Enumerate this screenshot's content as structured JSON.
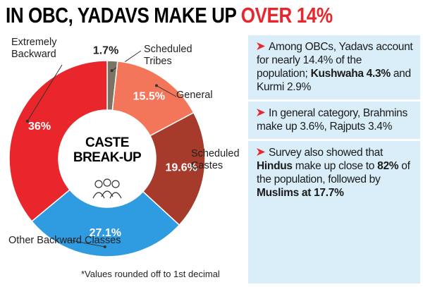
{
  "title": "IN OBC, YADAVS MAKE UP",
  "title_highlight": "OVER 14%",
  "chart_data": {
    "type": "donut",
    "center_label": "CASTE BREAK-UP",
    "categories": [
      "Scheduled Tribes",
      "General",
      "Scheduled Castes",
      "Other Backward Classes",
      "Extremely Backward"
    ],
    "values": [
      1.7,
      15.5,
      19.6,
      27.1,
      36
    ],
    "value_labels": [
      "1.7%",
      "15.5%",
      "19.6%",
      "27.1%",
      "36%"
    ],
    "colors": [
      "#7b7464",
      "#f4765a",
      "#a63b2c",
      "#2f9be0",
      "#e8262b"
    ],
    "footnote": "*Values rounded off to 1st decimal"
  },
  "panel": {
    "points": [
      [
        {
          "text": "Among OBCs, Yadavs account for nearly 14.4% of the population; "
        },
        {
          "text": "Kushwaha 4.3%",
          "bold": true
        },
        {
          "text": " and Kurmi 2.9%"
        }
      ],
      [
        {
          "text": "In general category, Brahmins make up 3.6%, Rajputs 3.4%"
        }
      ],
      [
        {
          "text": "Survey also showed that "
        },
        {
          "text": "Hindus",
          "bold": true
        },
        {
          "text": " make up close to "
        },
        {
          "text": "82%",
          "bold": true
        },
        {
          "text": " of the population, followed by "
        },
        {
          "text": "Muslims at 17.7%",
          "bold": true
        }
      ]
    ]
  }
}
